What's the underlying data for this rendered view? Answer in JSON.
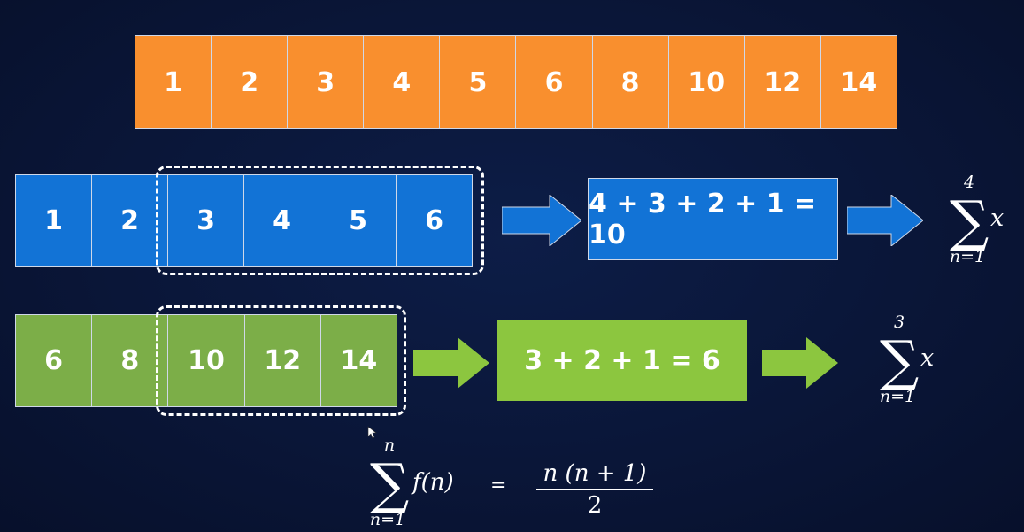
{
  "full_array": {
    "color": "#f98f2e",
    "values": [
      "1",
      "2",
      "3",
      "4",
      "5",
      "6",
      "8",
      "10",
      "12",
      "14"
    ]
  },
  "blue_row": {
    "color": "#1273d6",
    "values": [
      "1",
      "2",
      "3",
      "4",
      "5",
      "6"
    ],
    "window_start_index": 2,
    "sum_text": "4 + 3 + 2 + 1 = 10",
    "sigma": {
      "upper": "4",
      "lower": "n=1",
      "term": "x"
    }
  },
  "green_row": {
    "color": "#7cae48",
    "values": [
      "6",
      "8",
      "10",
      "12",
      "14"
    ],
    "window_start_index": 2,
    "sum_text": "3 + 2 + 1 = 6",
    "sigma": {
      "upper": "3",
      "lower": "n=1",
      "term": "x"
    }
  },
  "formula": {
    "upper": "n",
    "lower": "n=1",
    "term": "f(n)",
    "equals": "=",
    "numerator": "n (n + 1)",
    "denominator": "2"
  },
  "icons": [
    "right-arrow-icon",
    "sigma-icon",
    "cursor-icon"
  ]
}
